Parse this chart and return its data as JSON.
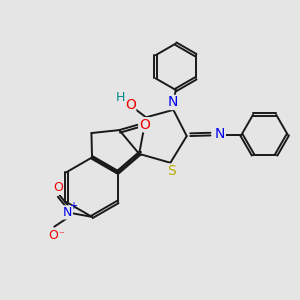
{
  "bg_color": "#e5e5e5",
  "bond_color": "#1a1a1a",
  "bond_width": 1.4,
  "atom_colors": {
    "N": "#0000ee",
    "O": "#ee0000",
    "S": "#bbaa00",
    "H": "#008888",
    "C": "#1a1a1a"
  },
  "font_size": 9.0
}
